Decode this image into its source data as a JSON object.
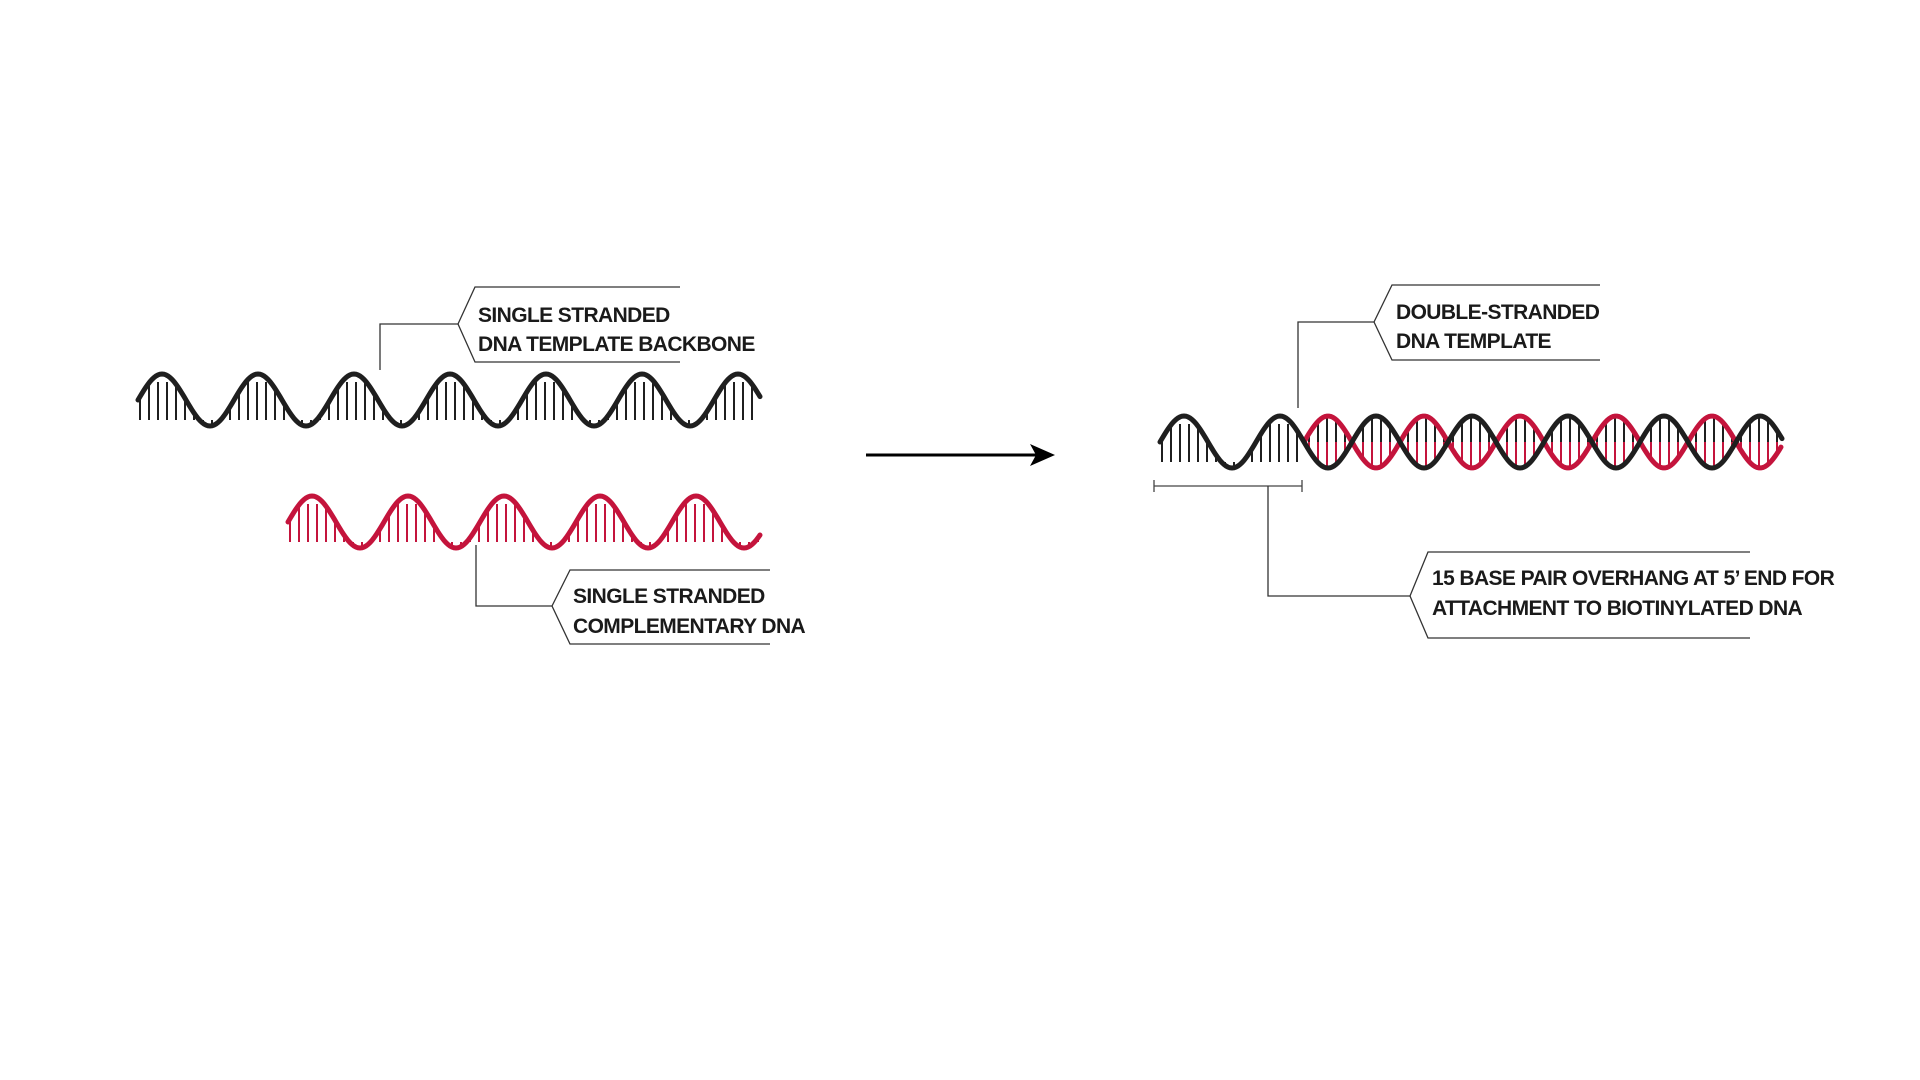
{
  "colors": {
    "template_strand": "#1f1f1f",
    "complementary_strand": "#c4143c",
    "arrow": "#000000",
    "callout_line": "#333333"
  },
  "labels": {
    "ss_template": {
      "line1": "SINGLE  STRANDED",
      "line2": "DNA TEMPLATE BACKBONE"
    },
    "ss_complementary": {
      "line1": "SINGLE  STRANDED",
      "line2": "COMPLEMENTARY DNA"
    },
    "ds_template": {
      "line1": "DOUBLE-STRANDED",
      "line2": "DNA TEMPLATE"
    },
    "overhang": {
      "line1": "15 BASE PAIR OVERHANG AT 5’ END FOR",
      "line2": "ATTACHMENT TO BIOTINYLATED DNA"
    }
  },
  "icons": {
    "process_arrow": "right-arrow-icon"
  }
}
